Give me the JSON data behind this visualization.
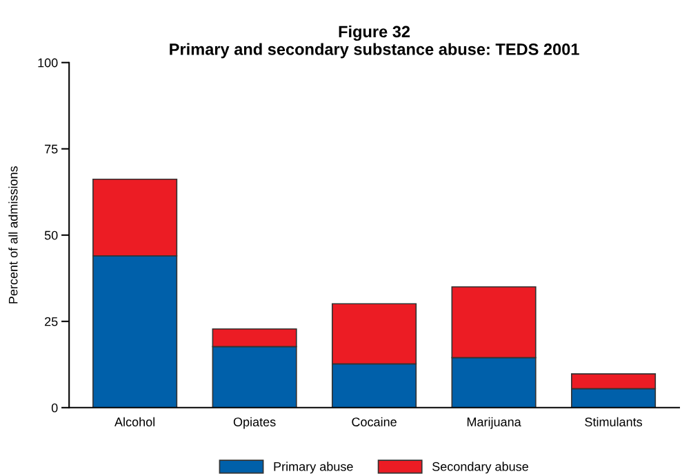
{
  "chart_data": {
    "type": "bar",
    "title": "Figure 32\nPrimary and secondary substance abuse: TEDS 2001",
    "ylabel": "Percent of all admissions",
    "categories": [
      "Alcohol",
      "Opiates",
      "Cocaine",
      "Marijuana",
      "Stimulants"
    ],
    "series": [
      {
        "name": "Primary abuse",
        "color": "#0060aa",
        "values": [
          44.0,
          17.7,
          12.7,
          14.5,
          5.5
        ]
      },
      {
        "name": "Secondary abuse",
        "color": "#ec1c24",
        "values": [
          22.2,
          5.1,
          17.4,
          20.5,
          4.3
        ]
      }
    ],
    "stacked": true,
    "ylim": [
      0,
      100
    ],
    "yticks": [
      0,
      25,
      50,
      75,
      100
    ],
    "grid": false,
    "legend": "bottom"
  }
}
